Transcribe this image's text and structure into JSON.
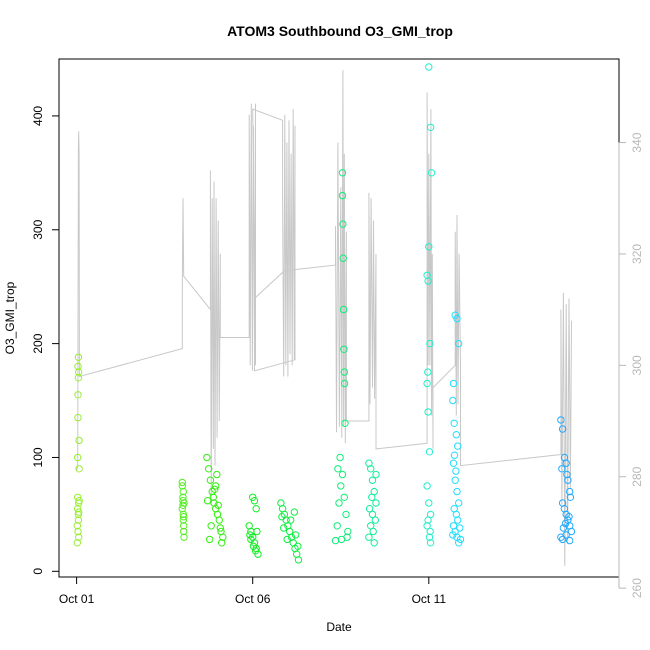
{
  "chart_data": {
    "type": "scatter",
    "title": "ATOM3 Southbound O3_GMI_trop",
    "xlabel": "Date",
    "ylabel": "O3_GMI_trop",
    "x_unit": "days_since_Oct_01",
    "xlim": [
      -0.5,
      15.4
    ],
    "ylim": [
      -5,
      450
    ],
    "y2lim": [
      262,
      355
    ],
    "x_ticks": [
      {
        "value": 0,
        "label": "Oct 01"
      },
      {
        "value": 5,
        "label": "Oct 06"
      },
      {
        "value": 10,
        "label": "Oct 11"
      }
    ],
    "y_ticks": [
      0,
      100,
      200,
      300,
      400
    ],
    "y2_ticks": [
      260,
      280,
      300,
      320,
      340
    ],
    "grid": false,
    "secondary_line_color": "#c8c8c8",
    "series": [
      {
        "color": "#99ee33",
        "points": [
          [
            0.02,
            25
          ],
          [
            0.02,
            40
          ],
          [
            0.03,
            55
          ],
          [
            0.03,
            65
          ],
          [
            0.03,
            100
          ],
          [
            0.04,
            135
          ],
          [
            0.04,
            155
          ],
          [
            0.04,
            180
          ],
          [
            0.05,
            188
          ],
          [
            0.05,
            50
          ],
          [
            0.06,
            30
          ],
          [
            0.06,
            60
          ],
          [
            0.07,
            90
          ],
          [
            0.07,
            115
          ],
          [
            0.05,
            170
          ],
          [
            0.06,
            175
          ],
          [
            0.05,
            45
          ],
          [
            0.04,
            35
          ],
          [
            0.07,
            62
          ],
          [
            0.06,
            52
          ]
        ]
      },
      {
        "color": "#55ee22",
        "points": [
          [
            3.0,
            78
          ],
          [
            3.0,
            75
          ],
          [
            3.02,
            65
          ],
          [
            3.02,
            58
          ],
          [
            3.03,
            50
          ],
          [
            3.03,
            45
          ],
          [
            3.04,
            40
          ],
          [
            3.04,
            35
          ],
          [
            3.05,
            30
          ],
          [
            3.05,
            60
          ],
          [
            3.0,
            55
          ],
          [
            3.03,
            70
          ],
          [
            3.04,
            48
          ],
          [
            3.02,
            62
          ]
        ]
      },
      {
        "color": "#33ee11",
        "points": [
          [
            3.7,
            100
          ],
          [
            3.75,
            90
          ],
          [
            3.8,
            80
          ],
          [
            3.85,
            70
          ],
          [
            3.9,
            60
          ],
          [
            3.95,
            55
          ],
          [
            4.0,
            50
          ],
          [
            4.05,
            45
          ],
          [
            4.1,
            35
          ],
          [
            4.15,
            30
          ],
          [
            3.78,
            28
          ],
          [
            3.82,
            40
          ],
          [
            3.88,
            65
          ],
          [
            3.92,
            72
          ],
          [
            3.98,
            85
          ],
          [
            4.02,
            58
          ],
          [
            4.08,
            38
          ],
          [
            4.12,
            25
          ],
          [
            3.72,
            62
          ],
          [
            3.95,
            75
          ]
        ]
      },
      {
        "color": "#11ee22",
        "points": [
          [
            4.9,
            40
          ],
          [
            4.95,
            35
          ],
          [
            5.0,
            30
          ],
          [
            5.05,
            25
          ],
          [
            5.1,
            20
          ],
          [
            5.15,
            15
          ],
          [
            5.0,
            65
          ],
          [
            5.05,
            62
          ],
          [
            5.1,
            55
          ],
          [
            4.95,
            28
          ],
          [
            5.12,
            35
          ],
          [
            5.02,
            22
          ],
          [
            5.08,
            18
          ],
          [
            4.92,
            32
          ]
        ]
      },
      {
        "color": "#11ee44",
        "points": [
          [
            5.8,
            60
          ],
          [
            5.85,
            55
          ],
          [
            5.9,
            50
          ],
          [
            5.95,
            45
          ],
          [
            6.0,
            40
          ],
          [
            6.05,
            35
          ],
          [
            6.1,
            30
          ],
          [
            6.15,
            25
          ],
          [
            6.2,
            20
          ],
          [
            6.25,
            15
          ],
          [
            6.3,
            10
          ],
          [
            5.88,
            38
          ],
          [
            5.98,
            28
          ],
          [
            6.08,
            45
          ],
          [
            6.18,
            52
          ],
          [
            6.28,
            22
          ],
          [
            5.83,
            48
          ],
          [
            6.22,
            32
          ]
        ]
      },
      {
        "color": "#11ee77",
        "points": [
          [
            7.35,
            27
          ],
          [
            7.4,
            40
          ],
          [
            7.45,
            60
          ],
          [
            7.5,
            75
          ],
          [
            7.55,
            85
          ],
          [
            7.6,
            65
          ],
          [
            7.65,
            50
          ],
          [
            7.7,
            35
          ],
          [
            7.42,
            90
          ],
          [
            7.48,
            100
          ],
          [
            7.55,
            350
          ],
          [
            7.55,
            330
          ],
          [
            7.56,
            305
          ],
          [
            7.57,
            275
          ],
          [
            7.58,
            230
          ],
          [
            7.59,
            195
          ],
          [
            7.6,
            175
          ],
          [
            7.61,
            165
          ],
          [
            7.62,
            130
          ],
          [
            7.52,
            28
          ],
          [
            7.68,
            30
          ]
        ]
      },
      {
        "color": "#11ee99",
        "points": [
          [
            8.3,
            95
          ],
          [
            8.35,
            90
          ],
          [
            8.4,
            80
          ],
          [
            8.45,
            70
          ],
          [
            8.5,
            60
          ],
          [
            8.4,
            50
          ],
          [
            8.35,
            40
          ],
          [
            8.3,
            30
          ],
          [
            8.45,
            25
          ],
          [
            8.5,
            85
          ],
          [
            8.38,
            65
          ],
          [
            8.42,
            35
          ],
          [
            8.32,
            55
          ],
          [
            8.48,
            45
          ]
        ]
      },
      {
        "color": "#22eecc",
        "points": [
          [
            10.0,
            443
          ],
          [
            10.05,
            390
          ],
          [
            10.08,
            350
          ],
          [
            10.0,
            285
          ],
          [
            9.95,
            260
          ],
          [
            9.98,
            255
          ],
          [
            10.03,
            200
          ],
          [
            9.97,
            175
          ],
          [
            9.95,
            165
          ],
          [
            9.98,
            140
          ],
          [
            10.02,
            105
          ],
          [
            9.95,
            75
          ],
          [
            10.0,
            60
          ],
          [
            10.05,
            50
          ],
          [
            9.95,
            40
          ],
          [
            10.02,
            30
          ],
          [
            10.05,
            25
          ],
          [
            9.98,
            45
          ],
          [
            10.04,
            35
          ]
        ]
      },
      {
        "color": "#22ddff",
        "points": [
          [
            10.75,
            225
          ],
          [
            10.8,
            222
          ],
          [
            10.85,
            200
          ],
          [
            10.7,
            165
          ],
          [
            10.68,
            150
          ],
          [
            10.72,
            130
          ],
          [
            10.78,
            120
          ],
          [
            10.82,
            110
          ],
          [
            10.7,
            95
          ],
          [
            10.75,
            80
          ],
          [
            10.8,
            70
          ],
          [
            10.85,
            60
          ],
          [
            10.72,
            55
          ],
          [
            10.78,
            50
          ],
          [
            10.82,
            45
          ],
          [
            10.7,
            40
          ],
          [
            10.75,
            35
          ],
          [
            10.8,
            30
          ],
          [
            10.85,
            25
          ],
          [
            10.9,
            28
          ],
          [
            10.68,
            32
          ],
          [
            10.88,
            38
          ],
          [
            10.73,
            102
          ],
          [
            10.77,
            88
          ]
        ]
      },
      {
        "color": "#22aaff",
        "points": [
          [
            13.75,
            133
          ],
          [
            13.8,
            125
          ],
          [
            13.85,
            100
          ],
          [
            13.9,
            95
          ],
          [
            13.95,
            80
          ],
          [
            14.0,
            70
          ],
          [
            13.8,
            60
          ],
          [
            13.85,
            55
          ],
          [
            13.9,
            50
          ],
          [
            13.95,
            45
          ],
          [
            14.0,
            40
          ],
          [
            14.05,
            35
          ],
          [
            13.75,
            30
          ],
          [
            13.8,
            28
          ],
          [
            13.9,
            32
          ],
          [
            14.0,
            27
          ],
          [
            13.82,
            38
          ],
          [
            13.88,
            42
          ],
          [
            13.98,
            48
          ],
          [
            14.02,
            65
          ],
          [
            13.78,
            90
          ],
          [
            13.92,
            85
          ]
        ]
      }
    ],
    "secondary_series": {
      "y_axis": "right",
      "points": [
        [
          0.0,
          281
        ],
        [
          0.03,
          282
        ],
        [
          0.04,
          305
        ],
        [
          0.05,
          339
        ],
        [
          0.06,
          342
        ],
        [
          0.07,
          338
        ],
        [
          0.08,
          300
        ],
        [
          0.08,
          298
        ],
        [
          3.0,
          303
        ],
        [
          3.0,
          313
        ],
        [
          3.02,
          330
        ],
        [
          3.03,
          324
        ],
        [
          3.04,
          316
        ],
        [
          3.04,
          316
        ],
        [
          3.8,
          310
        ],
        [
          3.8,
          335
        ],
        [
          3.82,
          275
        ],
        [
          3.85,
          330
        ],
        [
          3.88,
          285
        ],
        [
          3.9,
          333
        ],
        [
          3.93,
          282
        ],
        [
          3.96,
          330
        ],
        [
          3.99,
          287
        ],
        [
          4.02,
          326
        ],
        [
          4.05,
          290
        ],
        [
          4.08,
          320
        ],
        [
          4.08,
          305
        ],
        [
          4.9,
          305
        ],
        [
          4.9,
          345
        ],
        [
          4.93,
          300
        ],
        [
          4.96,
          347
        ],
        [
          4.99,
          299
        ],
        [
          5.02,
          343
        ],
        [
          5.05,
          301
        ],
        [
          5.08,
          347
        ],
        [
          5.08,
          300
        ],
        [
          5.0,
          346
        ],
        [
          5.0,
          346
        ],
        [
          5.85,
          344
        ],
        [
          5.85,
          330
        ],
        [
          5.88,
          298
        ],
        [
          5.91,
          345
        ],
        [
          5.94,
          300
        ],
        [
          5.97,
          340
        ],
        [
          6.0,
          298
        ],
        [
          6.03,
          344
        ],
        [
          6.06,
          302
        ],
        [
          6.09,
          338
        ],
        [
          6.12,
          300
        ],
        [
          6.15,
          346
        ],
        [
          6.18,
          301
        ],
        [
          6.2,
          343
        ],
        [
          6.2,
          301
        ],
        [
          5.05,
          299
        ],
        [
          5.05,
          312
        ],
        [
          5.9,
          317
        ],
        [
          5.9,
          317
        ],
        [
          7.35,
          318
        ],
        [
          7.35,
          325
        ],
        [
          7.38,
          288
        ],
        [
          7.42,
          340
        ],
        [
          7.46,
          289
        ],
        [
          7.5,
          332
        ],
        [
          7.53,
          287
        ],
        [
          7.56,
          353
        ],
        [
          7.58,
          289
        ],
        [
          7.6,
          338
        ],
        [
          7.63,
          286
        ],
        [
          7.66,
          324
        ],
        [
          7.66,
          290
        ],
        [
          8.3,
          290
        ],
        [
          8.3,
          331
        ],
        [
          8.33,
          293
        ],
        [
          8.36,
          330
        ],
        [
          8.4,
          296
        ],
        [
          8.43,
          326
        ],
        [
          8.46,
          294
        ],
        [
          8.5,
          320
        ],
        [
          8.5,
          285
        ],
        [
          9.95,
          286
        ],
        [
          9.95,
          349
        ],
        [
          9.98,
          300
        ],
        [
          10.0,
          338
        ],
        [
          10.03,
          300
        ],
        [
          10.06,
          346
        ],
        [
          10.08,
          291
        ],
        [
          10.1,
          320
        ],
        [
          10.12,
          285
        ],
        [
          10.12,
          296
        ],
        [
          10.75,
          300
        ],
        [
          10.75,
          324
        ],
        [
          10.78,
          291
        ],
        [
          10.8,
          327
        ],
        [
          10.83,
          293
        ],
        [
          10.86,
          320
        ],
        [
          10.9,
          300
        ],
        [
          10.9,
          282
        ],
        [
          13.75,
          284
        ],
        [
          13.75,
          310
        ],
        [
          13.78,
          275
        ],
        [
          13.82,
          313
        ],
        [
          13.86,
          264
        ],
        [
          13.9,
          311
        ],
        [
          13.94,
          268
        ],
        [
          13.98,
          312
        ],
        [
          14.02,
          278
        ],
        [
          14.05,
          308
        ]
      ]
    }
  }
}
